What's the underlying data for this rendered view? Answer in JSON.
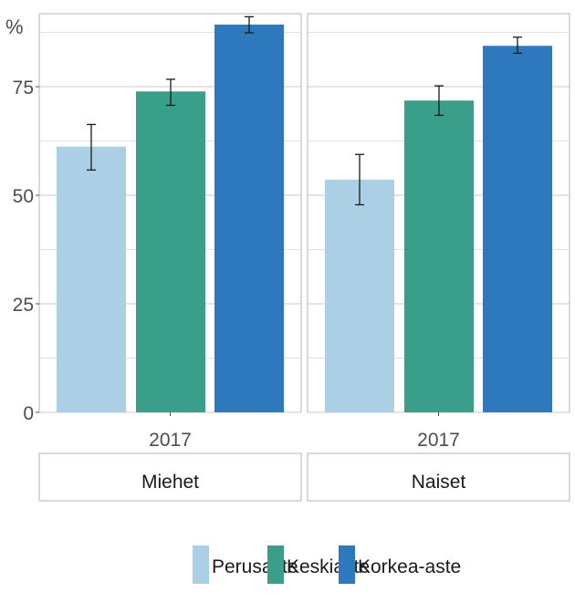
{
  "chart_data": {
    "type": "bar",
    "ylabel": "%",
    "ylim": [
      0,
      90
    ],
    "yticks": [
      0,
      25,
      50,
      75
    ],
    "grid": true,
    "legend_position": "bottom",
    "colors": {
      "Perusaste": "#abcfe5",
      "Keskiaste": "#3a9f8a",
      "Korkea-aste": "#2e79be"
    },
    "facets": [
      {
        "label": "Miehet",
        "category": "2017",
        "series": [
          {
            "name": "Perusaste",
            "value": 61.2,
            "ci_low": 55.8,
            "ci_high": 66.3
          },
          {
            "name": "Keskiaste",
            "value": 73.9,
            "ci_low": 70.7,
            "ci_high": 76.7
          },
          {
            "name": "Korkea-aste",
            "value": 89.3,
            "ci_low": 87.4,
            "ci_high": 91.1
          }
        ]
      },
      {
        "label": "Naiset",
        "category": "2017",
        "series": [
          {
            "name": "Perusaste",
            "value": 53.6,
            "ci_low": 47.8,
            "ci_high": 59.4
          },
          {
            "name": "Keskiaste",
            "value": 71.8,
            "ci_low": 68.4,
            "ci_high": 75.2
          },
          {
            "name": "Korkea-aste",
            "value": 84.4,
            "ci_low": 82.7,
            "ci_high": 86.4
          }
        ]
      }
    ],
    "legend": [
      "Perusaste",
      "Keskiaste",
      "Korkea-aste"
    ]
  }
}
